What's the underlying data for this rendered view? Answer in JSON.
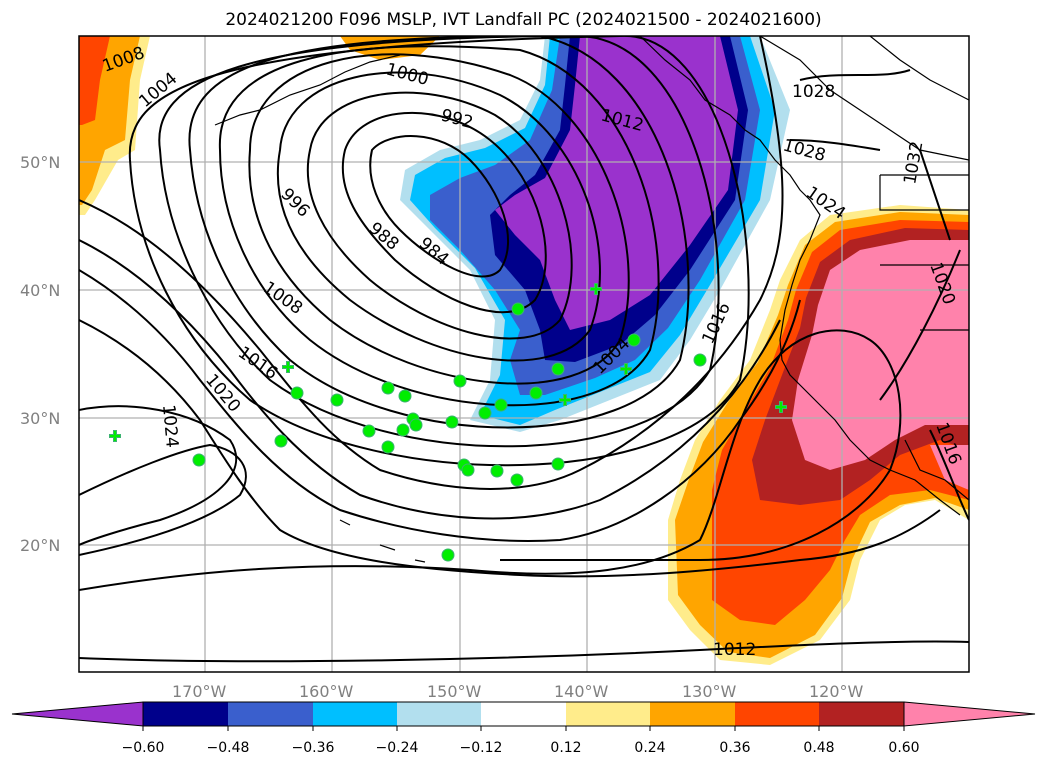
{
  "title": "2024021200 F096 MSLP, IVT Landfall PC (2024021500 - 2024021600)",
  "colors": {
    "c_n072": "#9a32cd",
    "c_n060": "#00008b",
    "c_n048": "#3a5fcd",
    "c_n036": "#00bfff",
    "c_n024": "#b2dfee",
    "c_n012": "#ffffff",
    "c_p012": "#ffec8b",
    "c_p024": "#ffa500",
    "c_p036": "#ff4500",
    "c_p048": "#b22222",
    "c_p060": "#ff82ab",
    "station_dot": "#00ee00",
    "station_cross": "#3cb371",
    "grid": "#b0b0b0",
    "contour": "#000000"
  },
  "axes": {
    "lat_ticks": [
      "20°N",
      "30°N",
      "40°N",
      "50°N"
    ],
    "lon_ticks": [
      "170°W",
      "160°W",
      "150°W",
      "140°W",
      "130°W",
      "120°W"
    ]
  },
  "colorbar": {
    "labels": [
      "−0.60",
      "−0.48",
      "−0.36",
      "−0.24",
      "−0.12",
      "0.12",
      "0.24",
      "0.36",
      "0.48",
      "0.60"
    ]
  },
  "contour_labels": [
    "1008",
    "1004",
    "1000",
    "992",
    "1012",
    "1028",
    "1028",
    "1032",
    "1024",
    "996",
    "988",
    "984",
    "1008",
    "1016",
    "1016",
    "1020",
    "1024",
    "1004",
    "1020",
    "1016",
    "1012"
  ]
}
